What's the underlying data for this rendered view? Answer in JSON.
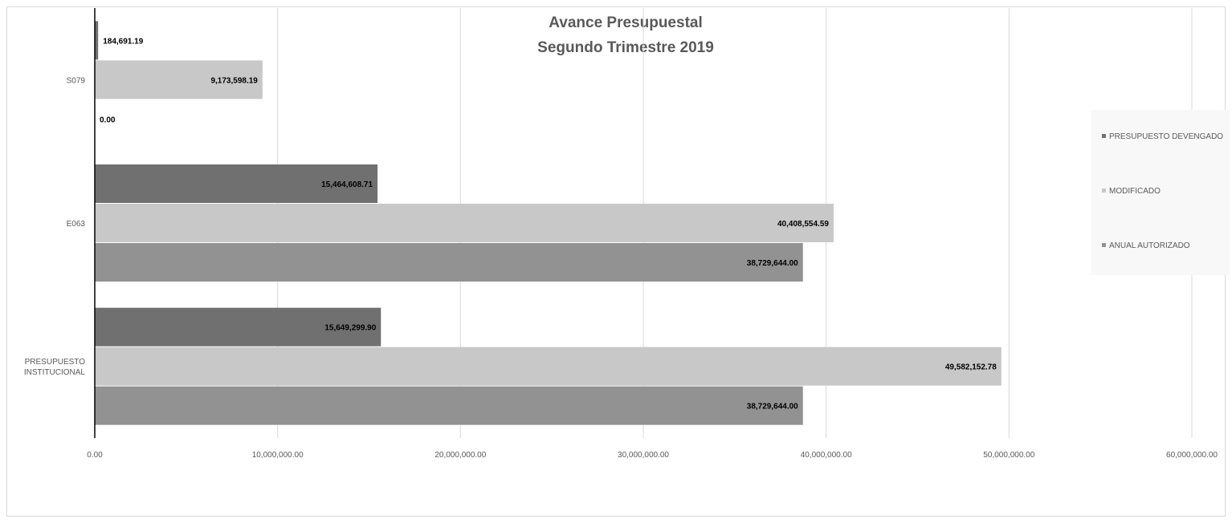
{
  "chart_data": {
    "type": "bar",
    "orientation": "horizontal",
    "title": [
      "Avance Presupuestal",
      "Segundo Trimestre 2019"
    ],
    "categories": [
      {
        "key": "s079",
        "label": [
          "S079"
        ]
      },
      {
        "key": "e063",
        "label": [
          "E063"
        ]
      },
      {
        "key": "presupuesto-institucional",
        "label": [
          "PRESUPUESTO",
          "INSTITUCIONAL"
        ]
      }
    ],
    "series": [
      {
        "key": "devengado",
        "name": "PRESUPUESTO DEVENGADO",
        "color": "#707070",
        "values": [
          184691.19,
          15464608.71,
          15649299.9
        ],
        "labels": [
          "184,691.19",
          "15,464,608.71",
          "15,649,299.90"
        ]
      },
      {
        "key": "modificado",
        "name": "MODIFICADO",
        "color": "#c8c8c8",
        "values": [
          9173598.19,
          40408554.59,
          49582152.78
        ],
        "labels": [
          "9,173,598.19",
          "40,408,554.59",
          "49,582,152.78"
        ]
      },
      {
        "key": "anual-autorizado",
        "name": "ANUAL AUTORIZADO",
        "color": "#929292",
        "values": [
          0.0,
          38729644.0,
          38729644.0
        ],
        "labels": [
          "0.00",
          "38,729,644.00",
          "38,729,644.00"
        ]
      }
    ],
    "xlim": [
      0,
      60000000
    ],
    "xticks": [
      0,
      10000000,
      20000000,
      30000000,
      40000000,
      50000000,
      60000000
    ],
    "xtick_labels": [
      "0.00",
      "10,000,000.00",
      "20,000,000.00",
      "30,000,000.00",
      "40,000,000.00",
      "50,000,000.00",
      "60,000,000.00"
    ],
    "grid": "vertical",
    "legend_position": "right"
  }
}
